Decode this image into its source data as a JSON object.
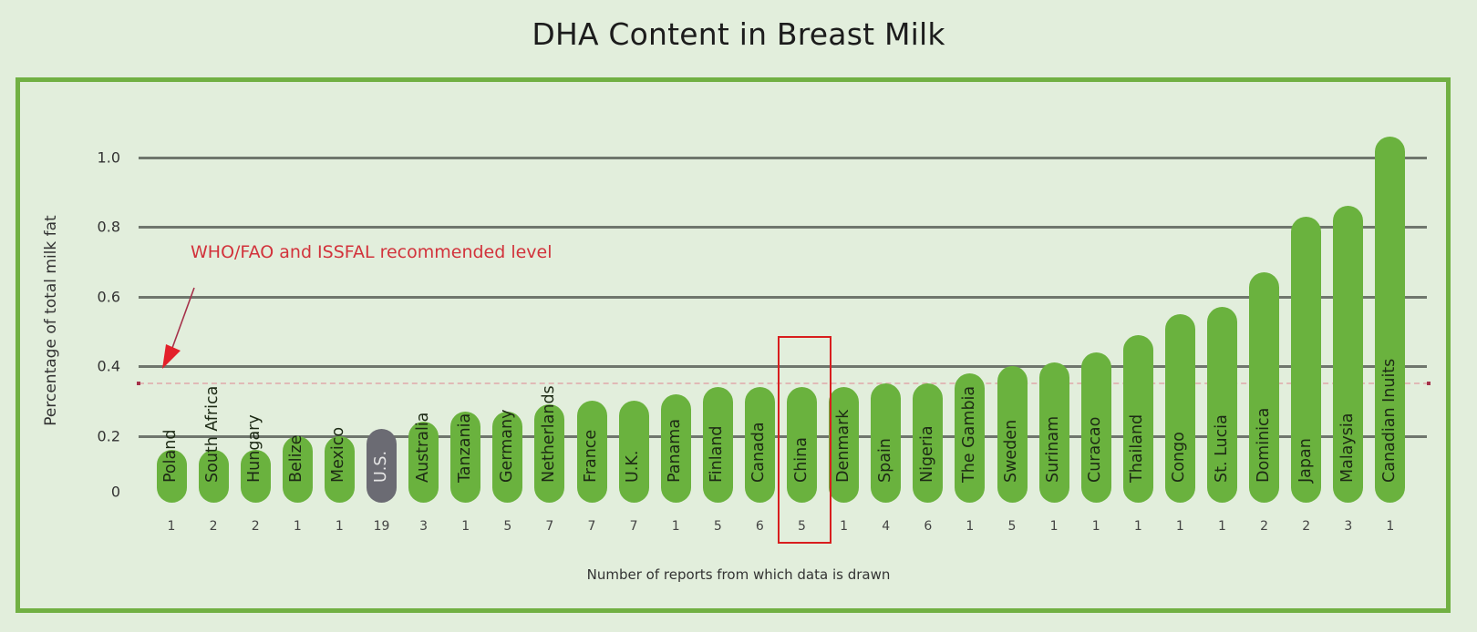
{
  "chart_data": {
    "type": "bar",
    "title": "DHA Content in Breast Milk",
    "xlabel": "Number of reports from which data is drawn",
    "ylabel": "Percentage of total milk fat",
    "ylim": [
      0,
      1.0
    ],
    "yticks": [
      "0",
      "0.2",
      "0.4",
      "0.6",
      "0.8",
      "1.0"
    ],
    "grid": true,
    "categories": [
      "Poland",
      "South Africa",
      "Hungary",
      "Belize",
      "Mexico",
      "U.S.",
      "Australia",
      "Tanzania",
      "Germany",
      "Netherlands",
      "France",
      "U.K.",
      "Panama",
      "Finland",
      "Canada",
      "China",
      "Denmark",
      "Spain",
      "Nigeria",
      "The Gambia",
      "Sweden",
      "Surinam",
      "Curacao",
      "Thailand",
      "Congo",
      "St. Lucia",
      "Dominica",
      "Japan",
      "Malaysia",
      "Canadian Inuits"
    ],
    "values": [
      0.16,
      0.16,
      0.16,
      0.2,
      0.2,
      0.22,
      0.24,
      0.27,
      0.27,
      0.29,
      0.3,
      0.3,
      0.32,
      0.34,
      0.34,
      0.34,
      0.34,
      0.35,
      0.35,
      0.38,
      0.4,
      0.41,
      0.44,
      0.49,
      0.55,
      0.57,
      0.67,
      0.83,
      0.86,
      1.06
    ],
    "report_counts": [
      1,
      2,
      2,
      1,
      1,
      19,
      3,
      1,
      5,
      7,
      7,
      7,
      1,
      5,
      6,
      5,
      1,
      4,
      6,
      1,
      5,
      1,
      1,
      1,
      1,
      1,
      2,
      2,
      3,
      1
    ],
    "highlighted_category": "China",
    "emphasized_category": "U.S.",
    "reference_line": {
      "value": 0.35,
      "label": "WHO/FAO and ISSFAL recommended level"
    },
    "colors": {
      "bar": "#6ab23e",
      "us_bar": "#6b6b73",
      "reference": "#d2323b",
      "frame": "#71b043",
      "highlight_box": "#d81e1e"
    }
  },
  "title": "DHA Content in Breast Milk",
  "y_axis": {
    "label": "Percentage of total milk fat",
    "ticks": [
      "0",
      "0.2",
      "0.4",
      "0.6",
      "0.8",
      "1.0"
    ]
  },
  "x_axis": {
    "label": "Number of reports from which data is drawn"
  },
  "annotation": "WHO/FAO and ISSFAL recommended level"
}
